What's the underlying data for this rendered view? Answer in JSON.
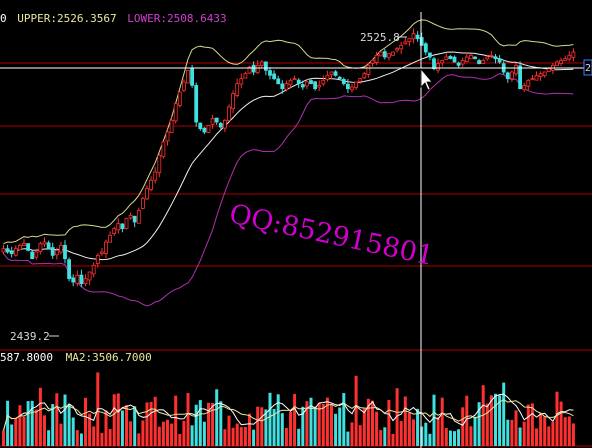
{
  "price_panel": {
    "header": {
      "prefix": "0",
      "upper_label": "UPPER:",
      "upper_value": "2526.3567",
      "lower_label": "LOWER:",
      "lower_value": "2508.6433",
      "prefix_color": "#ffffff",
      "upper_color": "#e8e8a0",
      "lower_color": "#d040d0"
    },
    "high_marker": "2525.8",
    "low_marker": "2439.2",
    "right_tag": "2",
    "watermark": "QQ:852915801"
  },
  "volume_panel": {
    "header": {
      "left_value": "587.8000",
      "ma2_label": "MA2:",
      "ma2_value": "3506.7000"
    }
  },
  "colors": {
    "background": "#000000",
    "up": "#ff3030",
    "down": "#40e0e0",
    "upper_band": "#d8d890",
    "middle_band": "#f0f0f0",
    "lower_band": "#b030b0",
    "grid": "#b00000",
    "crosshair": "#ffffff",
    "watermark": "#d000d0"
  },
  "chart_data": {
    "type": "candlestick",
    "price_range": [
      2430,
      2532
    ],
    "bars": 140,
    "cursor_index": 105,
    "close": [
      2461.0,
      2460.0,
      2459.5,
      2461.0,
      2462.0,
      2462.5,
      2460.5,
      2458.0,
      2460.0,
      2462.5,
      2463.0,
      2461.0,
      2459.0,
      2460.5,
      2462.0,
      2458.0,
      2452.0,
      2451.0,
      2453.0,
      2450.5,
      2452.0,
      2454.0,
      2456.0,
      2459.0,
      2460.0,
      2463.0,
      2465.0,
      2467.0,
      2468.5,
      2467.0,
      2470.0,
      2471.0,
      2469.0,
      2472.5,
      2476.0,
      2479.0,
      2481.5,
      2484.0,
      2489.0,
      2493.0,
      2496.0,
      2499.5,
      2504.5,
      2508.0,
      2511.0,
      2514.5,
      2510.0,
      2499.0,
      2497.0,
      2496.0,
      2498.0,
      2500.0,
      2499.0,
      2497.5,
      2499.5,
      2503.5,
      2507.5,
      2510.5,
      2512.0,
      2513.5,
      2515.5,
      2514.0,
      2516.0,
      2517.0,
      2514.5,
      2513.0,
      2512.0,
      2510.5,
      2509.0,
      2510.5,
      2511.5,
      2512.0,
      2510.5,
      2509.5,
      2511.0,
      2510.5,
      2509.0,
      2510.0,
      2511.5,
      2513.0,
      2514.0,
      2513.0,
      2512.0,
      2510.5,
      2509.0,
      2509.5,
      2511.0,
      2512.0,
      2513.5,
      2516.0,
      2517.5,
      2519.0,
      2520.0,
      2518.5,
      2519.5,
      2520.0,
      2521.0,
      2522.0,
      2523.0,
      2524.0,
      2525.5,
      2524.0,
      2522.0,
      2520.0,
      2518.5,
      2515.0,
      2516.5,
      2517.5,
      2518.5,
      2518.0,
      2517.0,
      2516.0,
      2517.5,
      2518.5,
      2519.0,
      2518.0,
      2516.5,
      2517.5,
      2518.5,
      2519.0,
      2518.0,
      2517.0,
      2514.0,
      2512.0,
      2514.0,
      2516.0,
      2509.0,
      2510.0,
      2511.5,
      2512.0,
      2513.0,
      2513.5,
      2514.0,
      2515.0,
      2516.0,
      2517.0,
      2517.5,
      2518.0,
      2519.0,
      2520.0
    ],
    "volume_range": [
      0,
      10000
    ]
  }
}
